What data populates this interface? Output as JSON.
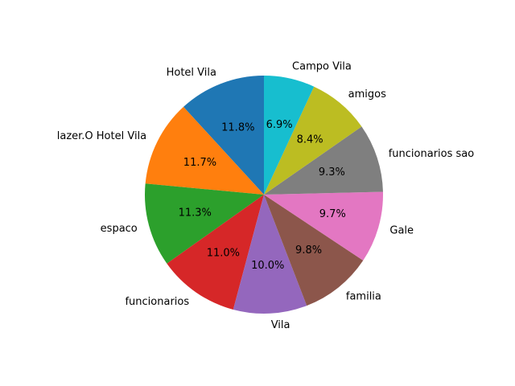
{
  "chart_data": {
    "type": "pie",
    "title": "",
    "start_angle_deg": 90,
    "direction": "counterclockwise",
    "percent_format": "{:.1f}%",
    "slices": [
      {
        "label": "Hotel Vila",
        "value": 11.8,
        "color": "#1f77b4"
      },
      {
        "label": "lazer.O Hotel Vila",
        "value": 11.7,
        "color": "#ff7f0e"
      },
      {
        "label": "espaco",
        "value": 11.3,
        "color": "#2ca02c"
      },
      {
        "label": "funcionarios",
        "value": 11.0,
        "color": "#d62728"
      },
      {
        "label": "Vila",
        "value": 10.0,
        "color": "#9467bd"
      },
      {
        "label": "familia",
        "value": 9.8,
        "color": "#8c564b"
      },
      {
        "label": "Gale",
        "value": 9.7,
        "color": "#e377c2"
      },
      {
        "label": "funcionarios sao",
        "value": 9.3,
        "color": "#7f7f7f"
      },
      {
        "label": "amigos",
        "value": 8.4,
        "color": "#bcbd22"
      },
      {
        "label": "Campo Vila",
        "value": 6.9,
        "color": "#17becf"
      }
    ]
  }
}
